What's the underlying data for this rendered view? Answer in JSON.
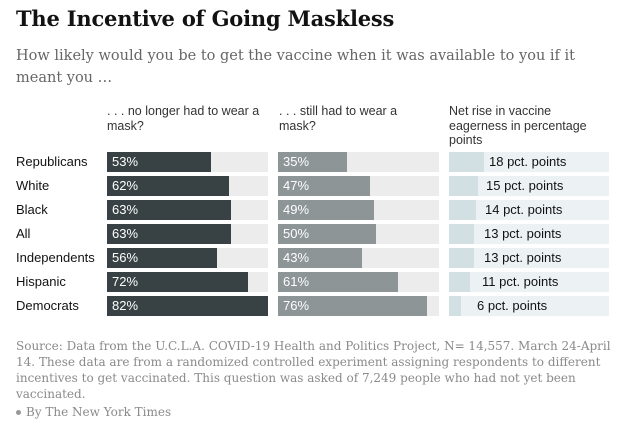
{
  "title": "The Incentive of Going Maskless",
  "subtitle": "How likely would you be to get the vaccine when it was available to you if it meant you …",
  "columns": {
    "no_mask": ". . . no longer had to wear a mask?",
    "still_mask": ". . . still had to wear a mask?",
    "net_rise": "Net rise in vaccine eagerness in percentage points"
  },
  "source": "Source: Data from the U.C.L.A. COVID-19 Health and Politics Project, N= 14,557. March 24-April 14. These data are from a randomized controlled experiment assigning respondents to different incentives to get vaccinated. This question was asked of 7,249 people who had not yet been vaccinated.",
  "credit": "By The New York Times",
  "colors": {
    "no_mask_bar": "#384245",
    "no_mask_track": "#ececec",
    "still_mask_bar": "#8d9596",
    "still_mask_track": "#ececec",
    "net_bar": "#d2e0e4",
    "net_track": "#ecf1f3"
  },
  "chart_data": {
    "type": "bar",
    "orientation": "horizontal",
    "categories": [
      "Republicans",
      "White",
      "Black",
      "All",
      "Independents",
      "Hispanic",
      "Democrats"
    ],
    "xlim": [
      0,
      100
    ],
    "series": [
      {
        "name": ". . . no longer had to wear a mask?",
        "values": [
          53,
          62,
          63,
          63,
          56,
          72,
          82
        ],
        "labels": [
          "53%",
          "62%",
          "63%",
          "63%",
          "56%",
          "72%",
          "82%"
        ]
      },
      {
        "name": ". . . still had to wear a mask?",
        "values": [
          35,
          47,
          49,
          50,
          43,
          61,
          76
        ],
        "labels": [
          "35%",
          "47%",
          "49%",
          "50%",
          "43%",
          "61%",
          "76%"
        ]
      },
      {
        "name": "Net rise in vaccine eagerness in percentage points",
        "values": [
          18,
          15,
          14,
          13,
          13,
          11,
          6
        ],
        "labels": [
          "18 pct. points",
          "15 pct. points",
          "14 pct. points",
          "13 pct. points",
          "13 pct. points",
          "11 pct. points",
          "6 pct. points"
        ]
      }
    ]
  }
}
